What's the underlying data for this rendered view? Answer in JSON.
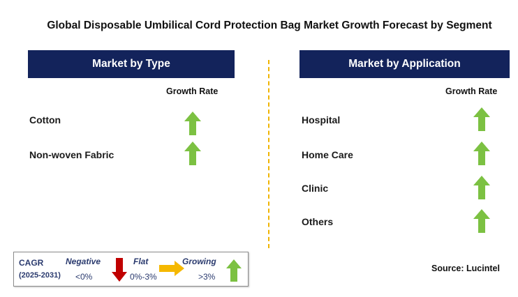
{
  "title": "Global Disposable Umbilical Cord Protection Bag Market Growth Forecast by Segment",
  "left_panel": {
    "header": "Market by Type",
    "column_header": "Growth Rate",
    "rows": [
      {
        "label": "Cotton",
        "trend": "growing"
      },
      {
        "label": "Non-woven Fabric",
        "trend": "growing"
      }
    ]
  },
  "right_panel": {
    "header": "Market by Application",
    "column_header": "Growth Rate",
    "rows": [
      {
        "label": "Hospital",
        "trend": "growing"
      },
      {
        "label": "Home Care",
        "trend": "growing"
      },
      {
        "label": "Clinic",
        "trend": "growing"
      },
      {
        "label": "Others",
        "trend": "growing"
      }
    ]
  },
  "legend": {
    "cagr_label": "CAGR",
    "period": "(2025-2031)",
    "negative_label": "Negative",
    "negative_range": "<0%",
    "flat_label": "Flat",
    "flat_range": "0%-3%",
    "growing_label": "Growing",
    "growing_range": ">3%"
  },
  "source": "Source: Lucintel",
  "colors": {
    "header_bg": "#13235b",
    "growing_arrow": "#7cc142",
    "negative_arrow": "#c00000",
    "flat_arrow": "#f5b800",
    "divider": "#f0b400"
  },
  "icons": {
    "growing": "up-arrow-icon",
    "negative": "down-arrow-icon",
    "flat": "right-arrow-icon"
  }
}
